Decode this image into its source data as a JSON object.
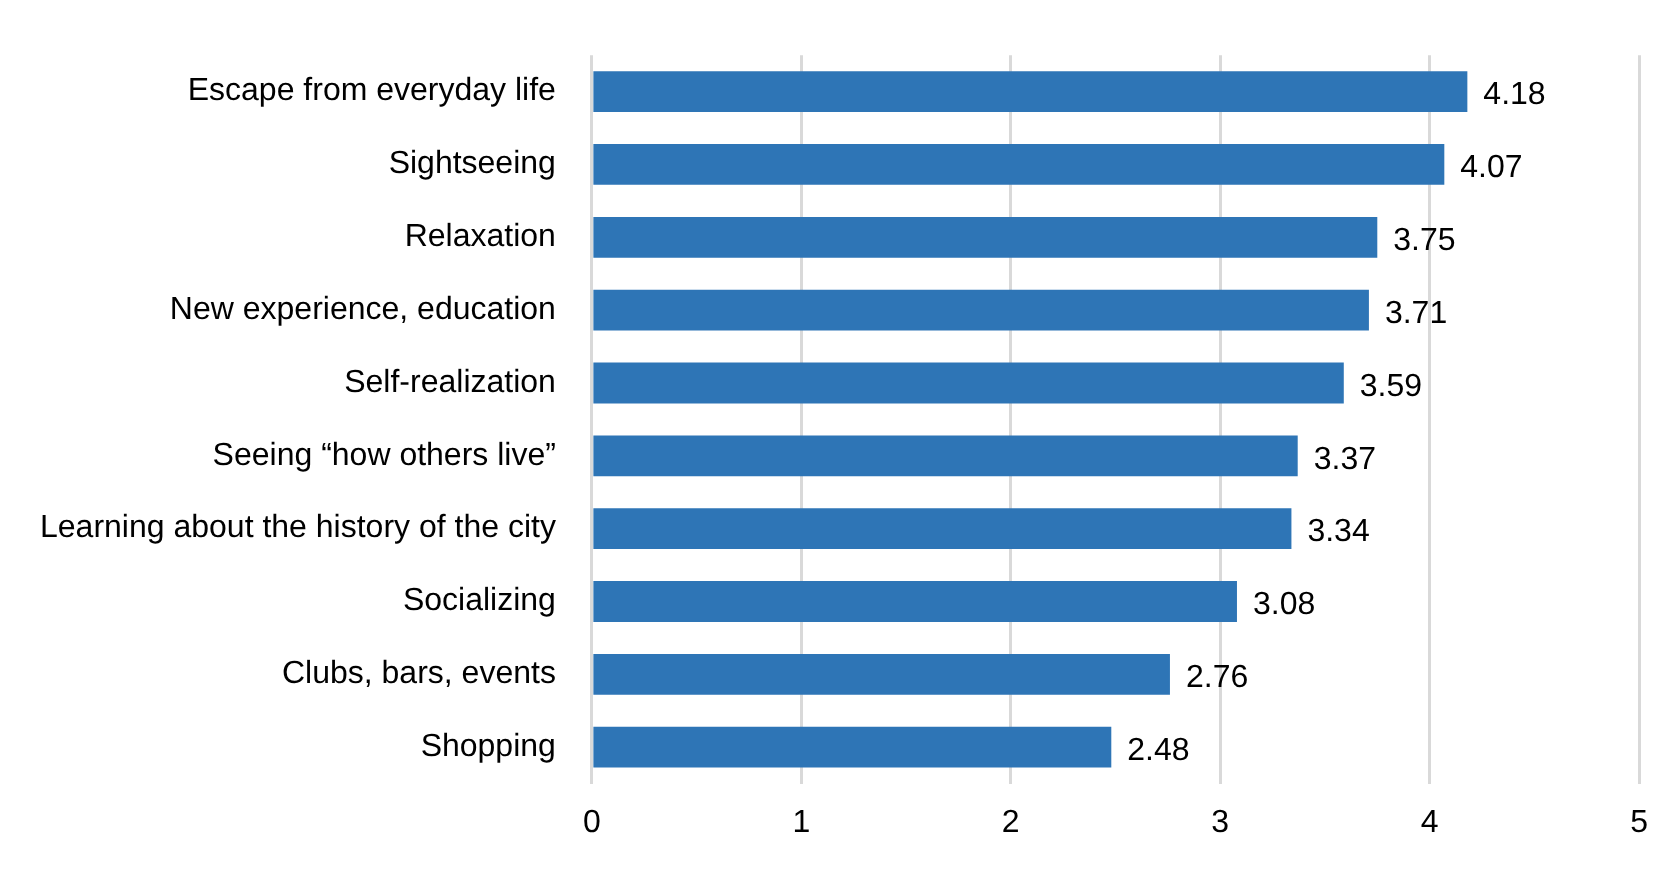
{
  "chart_data": {
    "type": "bar",
    "orientation": "horizontal",
    "categories": [
      "Escape from everyday life",
      "Sightseeing",
      "Relaxation",
      "New experience, education",
      "Self-realization",
      "Seeing “how others live”",
      "Learning about the history of the city",
      "Socializing",
      "Clubs, bars, events",
      "Shopping"
    ],
    "values": [
      4.18,
      4.07,
      3.75,
      3.71,
      3.59,
      3.37,
      3.34,
      3.08,
      2.76,
      2.48
    ],
    "color": "#2e75b6",
    "xlim": [
      0,
      5
    ],
    "xticks": [
      0,
      1,
      2,
      3,
      4,
      5
    ],
    "grid": "x",
    "data_labels": true,
    "legend": false
  }
}
